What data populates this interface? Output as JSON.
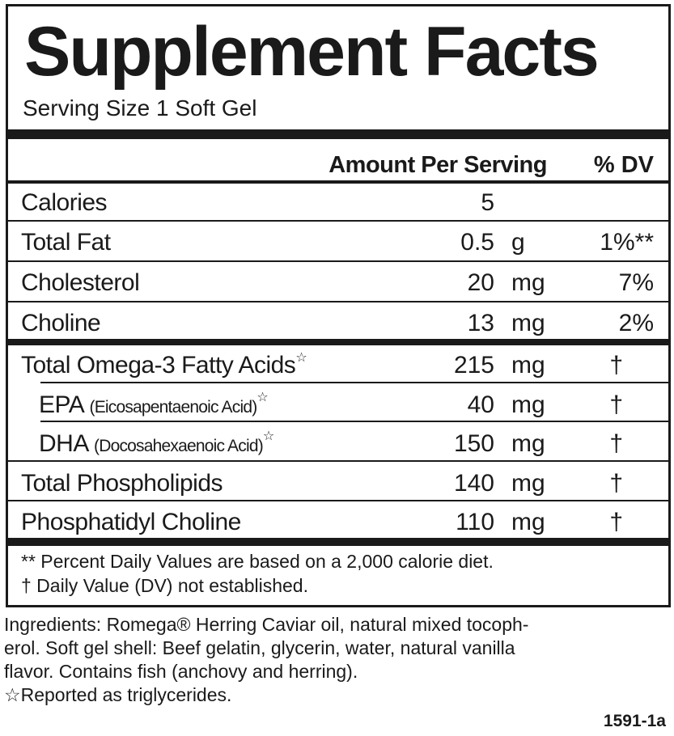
{
  "title": "Supplement Facts",
  "serving_size": "Serving Size 1 Soft Gel",
  "header": {
    "amount": "Amount Per Serving",
    "dv": "% DV"
  },
  "rows": [
    {
      "name": "Calories",
      "amount": "5",
      "unit": "",
      "dv": ""
    },
    {
      "name": "Total Fat",
      "amount": "0.5",
      "unit": "g",
      "dv": "1%**"
    },
    {
      "name": "Cholesterol",
      "amount": "20",
      "unit": "mg",
      "dv": "7%"
    },
    {
      "name": "Choline",
      "amount": "13",
      "unit": "mg",
      "dv": "2%"
    },
    {
      "name": "Total Omega-3 Fatty Acids",
      "mark": "☆",
      "amount": "215",
      "unit": "mg",
      "dv": "†"
    },
    {
      "name": "EPA",
      "detail": "(Eicosapentaenoic Acid)",
      "mark": "☆",
      "amount": "40",
      "unit": "mg",
      "dv": "†"
    },
    {
      "name": "DHA",
      "detail": "(Docosahexaenoic Acid)",
      "mark": "☆",
      "amount": "150",
      "unit": "mg",
      "dv": "†"
    },
    {
      "name": "Total Phospholipids",
      "amount": "140",
      "unit": "mg",
      "dv": "†"
    },
    {
      "name": "Phosphatidyl Choline",
      "amount": "110",
      "unit": "mg",
      "dv": "†"
    }
  ],
  "footnotes": [
    "** Percent Daily Values are based on a 2,000 calorie diet.",
    "† Daily Value (DV) not established."
  ],
  "ingredients": {
    "line1": "Ingredients: Romega® Herring Caviar oil, natural mixed tocoph-",
    "line2": "erol. Soft gel shell: Beef gelatin, glycerin, water, natural vanilla",
    "line3": "flavor. Contains fish (anchovy and herring).",
    "note": "☆Reported as triglycerides."
  },
  "code": "1591-1a"
}
